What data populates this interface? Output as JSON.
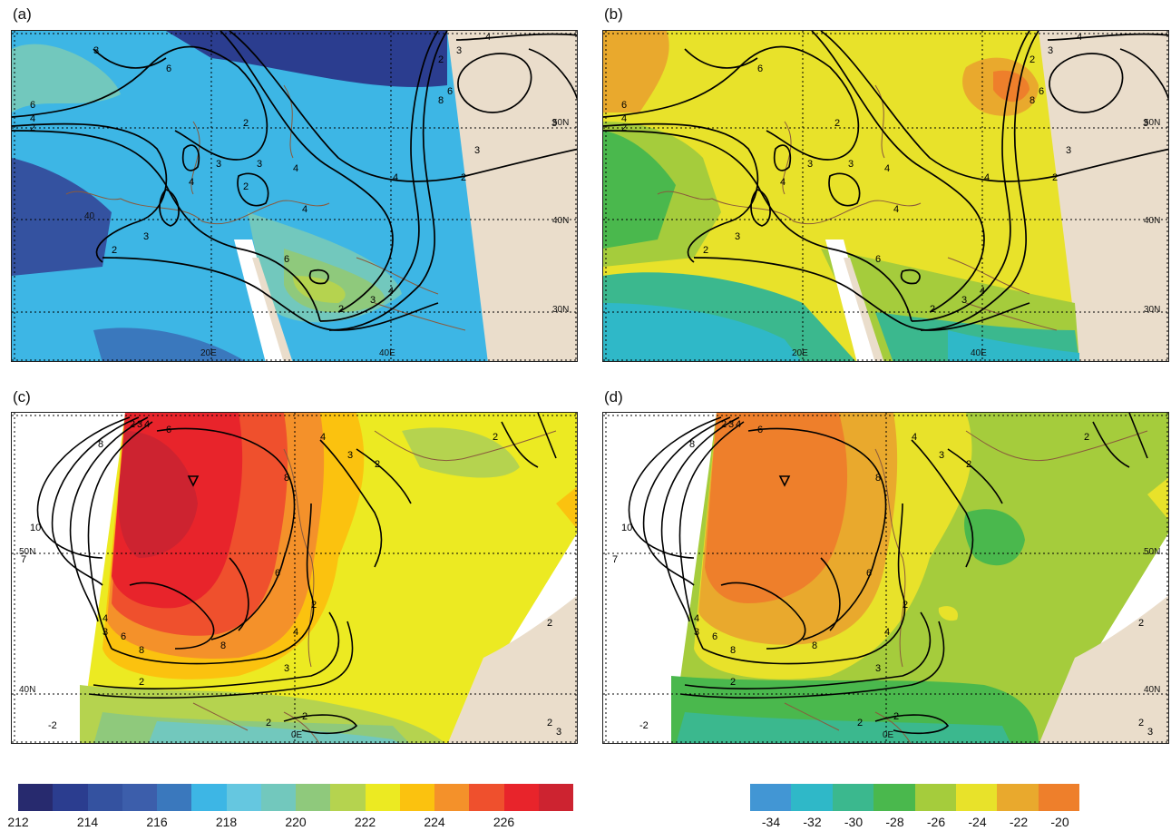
{
  "panels": [
    {
      "label": "(a)",
      "lat_labels": [
        "50N",
        "40N",
        "30N"
      ],
      "lon_labels": [
        "20E",
        "40E"
      ],
      "extra_labels": [
        "40"
      ]
    },
    {
      "label": "(b)",
      "lat_labels": [
        "50N",
        "40N",
        "30N"
      ],
      "lon_labels": [
        "20E",
        "40E"
      ]
    },
    {
      "label": "(c)",
      "lat_labels": [
        "50N",
        "40N"
      ],
      "lon_labels": [
        "0E"
      ]
    },
    {
      "label": "(d)",
      "lat_labels": [
        "50N",
        "40N"
      ],
      "lon_labels": [
        "0E"
      ]
    }
  ],
  "colorbar_left": {
    "colors": [
      "#272a6e",
      "#2b3d8f",
      "#3452a0",
      "#3c5eab",
      "#3a78bd",
      "#3db6e5",
      "#65c7e0",
      "#72c8bd",
      "#8fc97c",
      "#b5d34f",
      "#ecea22",
      "#fbc20f",
      "#f4912a",
      "#ef502d",
      "#e8242b",
      "#cd2330"
    ],
    "labels": [
      "212",
      "214",
      "216",
      "218",
      "220",
      "222",
      "224",
      "226"
    ]
  },
  "colorbar_right": {
    "colors": [
      "#4296d4",
      "#2fb8c8",
      "#3bb88e",
      "#4ab84d",
      "#a5cc3c",
      "#e8e22a",
      "#e9a92d",
      "#ee7f2b"
    ],
    "labels": [
      "-34",
      "-32",
      "-30",
      "-28",
      "-26",
      "-24",
      "-22",
      "-20"
    ]
  },
  "colors": {
    "land": "#eaddcb",
    "no_data": "#ffffff",
    "contour": "#000000",
    "coastline": "#8a5a3c"
  }
}
